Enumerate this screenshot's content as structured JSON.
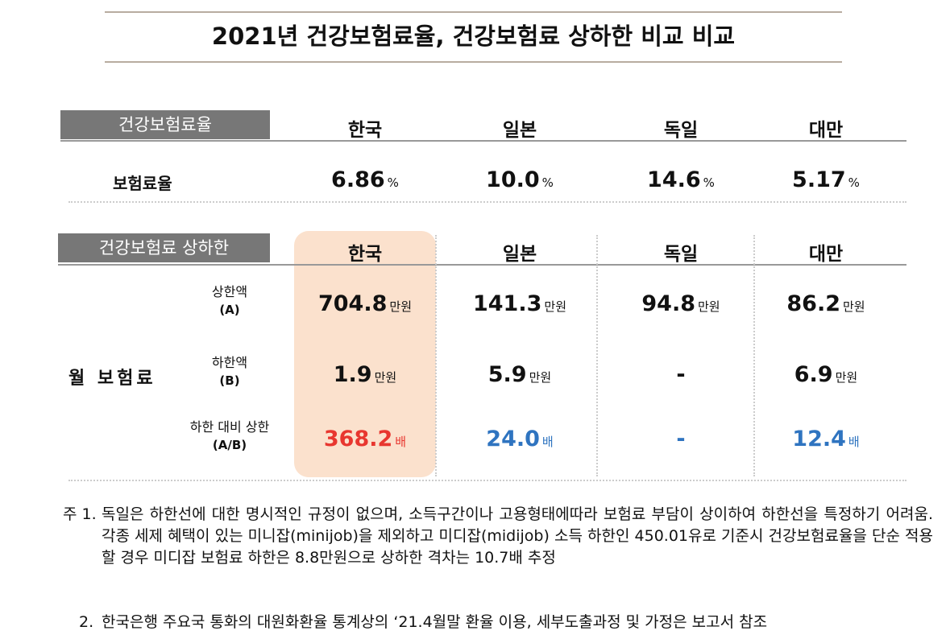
{
  "title": "2021년 건강보험료율, 건강보험료 상하한 비교 비교",
  "rate_table": {
    "header": "건강보험료율",
    "columns": [
      "한국",
      "일본",
      "독일",
      "대만"
    ],
    "row_label": "보험료율",
    "cells": [
      {
        "value": "6.86",
        "unit": "%"
      },
      {
        "value": "10.0",
        "unit": "%"
      },
      {
        "value": "14.6",
        "unit": "%"
      },
      {
        "value": "5.17",
        "unit": "%"
      }
    ]
  },
  "cap_table": {
    "header": "건강보험료 상하한",
    "columns": [
      "한국",
      "일본",
      "독일",
      "대만"
    ],
    "group_label": "월 보험료",
    "rows": [
      {
        "label": "상한액",
        "sub": "(A)",
        "cells": [
          {
            "value": "704.8",
            "unit": "만원"
          },
          {
            "value": "141.3",
            "unit": "만원"
          },
          {
            "value": "94.8",
            "unit": "만원"
          },
          {
            "value": "86.2",
            "unit": "만원"
          }
        ]
      },
      {
        "label": "하한액",
        "sub": "(B)",
        "cells": [
          {
            "value": "1.9",
            "unit": "만원"
          },
          {
            "value": "5.9",
            "unit": "만원"
          },
          {
            "value": "-"
          },
          {
            "value": "6.9",
            "unit": "만원"
          }
        ]
      },
      {
        "label": "하한 대비 상한",
        "sub": "(A/B)",
        "cells": [
          {
            "value": "368.2",
            "unit": "배"
          },
          {
            "value": "24.0",
            "unit": "배"
          },
          {
            "value": "-"
          },
          {
            "value": "12.4",
            "unit": "배"
          }
        ]
      }
    ]
  },
  "notes": [
    {
      "marker": "주 1.",
      "text": "독일은 하한선에 대한 명시적인 규정이 없으며, 소득구간이나 고용형태에따라 보험료 부담이 상이하여 하한선을 특정하기 어려움. 각종 세제 혜택이 있는 미니잡(minijob)을 제외하고 미디잡(midijob) 소득 하한인 450.01유로 기준시 건강보험료율을 단순 적용할 경우 미디잡 보험료 하한은 8.8만원으로 상하한 격차는 10.7배 추정"
    },
    {
      "marker": "2.",
      "text": "한국은행 주요국 통화의 대원화환율 통계상의 ‘21.4월말 환율 이용, 세부도출과정 및 가정은 보고서 참조"
    }
  ]
}
